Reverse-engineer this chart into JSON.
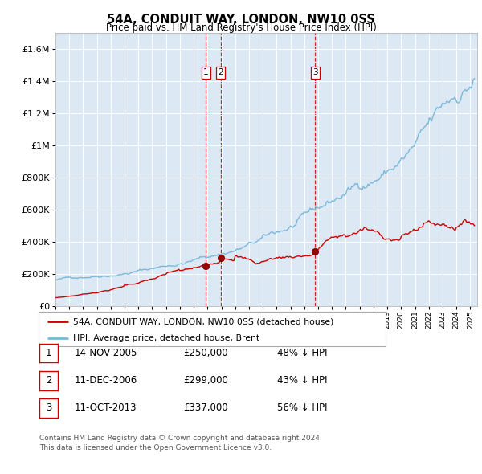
{
  "title": "54A, CONDUIT WAY, LONDON, NW10 0SS",
  "subtitle": "Price paid vs. HM Land Registry's House Price Index (HPI)",
  "plot_bg_color": "#dce9f5",
  "legend_label_red": "54A, CONDUIT WAY, LONDON, NW10 0SS (detached house)",
  "legend_label_blue": "HPI: Average price, detached house, Brent",
  "red_color": "#cc0000",
  "blue_color": "#7ab8d9",
  "transactions": [
    {
      "num": 1,
      "date": "14-NOV-2005",
      "price": "250,000",
      "hpi_diff": "48% ↓ HPI",
      "year": 2005.87,
      "price_val": 250000
    },
    {
      "num": 2,
      "date": "11-DEC-2006",
      "price": "299,000",
      "hpi_diff": "43% ↓ HPI",
      "year": 2006.95,
      "price_val": 299000
    },
    {
      "num": 3,
      "date": "11-OCT-2013",
      "price": "337,000",
      "hpi_diff": "56% ↓ HPI",
      "year": 2013.78,
      "price_val": 337000
    }
  ],
  "footnote_line1": "Contains HM Land Registry data © Crown copyright and database right 2024.",
  "footnote_line2": "This data is licensed under the Open Government Licence v3.0.",
  "ylim_max": 1700000,
  "xlim_start": 1995.0,
  "xlim_end": 2025.5,
  "yticks": [
    0,
    200000,
    400000,
    600000,
    800000,
    1000000,
    1200000,
    1400000,
    1600000
  ]
}
